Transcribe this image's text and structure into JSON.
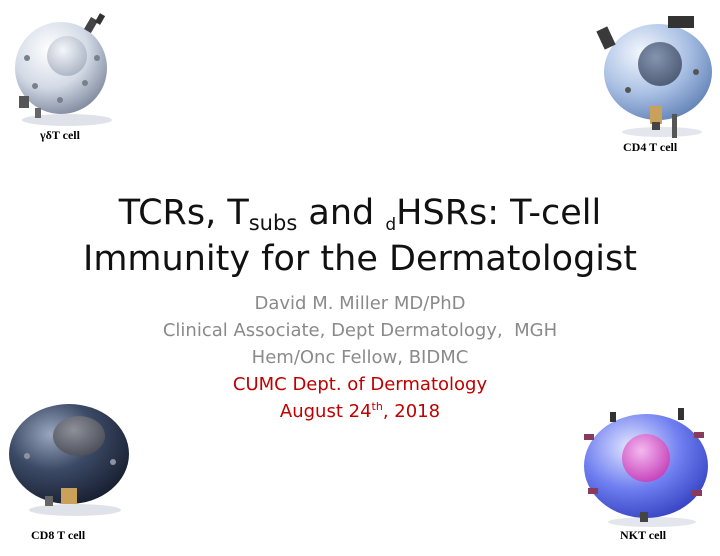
{
  "cells": {
    "gd": {
      "label": "γδT cell"
    },
    "cd4": {
      "label": "CD4 T cell"
    },
    "cd8": {
      "label": "CD8 T cell"
    },
    "nkt": {
      "label": "NKT cell"
    }
  },
  "title": {
    "part1": "TCRs, T",
    "subs": "subs",
    "part2": " and ",
    "d": "d",
    "part3": "HSRs: T-cell",
    "line2": "Immunity for the Dermatologist"
  },
  "subtitle": {
    "author": "David M. Miller MD/PhD",
    "role1": "Clinical Associate, Dept Dermatology,  MGH",
    "role2": "Hem/Onc Fellow, BIDMC",
    "venue": "CUMC Dept. of Dermatology",
    "date_pre": "August 24",
    "date_sup": "th",
    "date_post": ", 2018"
  },
  "colors": {
    "accent": "#c00000",
    "gray_text": "#8a8a8a"
  }
}
